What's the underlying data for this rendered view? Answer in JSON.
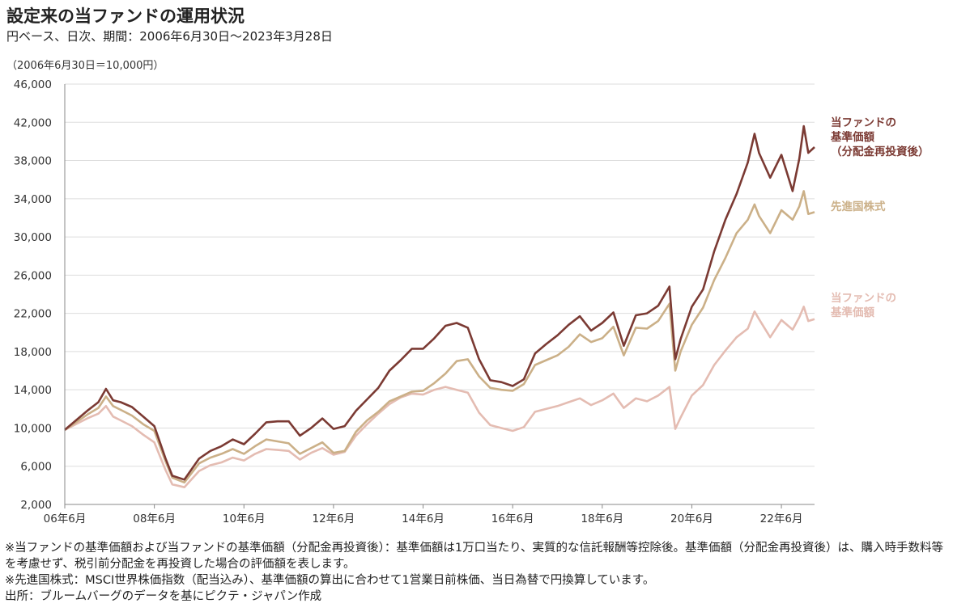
{
  "title": "設定来の当ファンドの運用状況",
  "subtitle": "円ベース、日次、期間：2006年6月30日～2023年3月28日",
  "unit_note": "（2006年6月30日＝10,000円）",
  "footnotes": [
    "※当ファンドの基準価額および当ファンドの基準価額（分配金再投資後）：基準価額は1万口当たり、実質的な信託報酬等控除後。基準価額（分配金再投資後）は、購入時手数料等を考慮せず、税引前分配金を再投資した場合の評価額を表します。",
    "※先進国株式：MSCI世界株価指数（配当込み）、基準価額の算出に合わせて1営業日前株価、当日為替で円換算しています。",
    "出所：ブルームバーグのデータを基にピクテ・ジャパン作成"
  ],
  "chart_data": {
    "type": "line",
    "ylim": [
      2000,
      46000
    ],
    "yticks": [
      "2,000",
      "6,000",
      "10,000",
      "14,000",
      "18,000",
      "22,000",
      "26,000",
      "30,000",
      "34,000",
      "38,000",
      "42,000",
      "46,000"
    ],
    "ytick_values": [
      2000,
      6000,
      10000,
      14000,
      18000,
      22000,
      26000,
      30000,
      34000,
      38000,
      42000,
      46000
    ],
    "xlim": [
      2006.5,
      2023.24
    ],
    "xticks": [
      "06年6月",
      "08年6月",
      "10年6月",
      "12年6月",
      "14年6月",
      "16年6月",
      "18年6月",
      "20年6月",
      "22年6月"
    ],
    "xtick_values": [
      2006.5,
      2008.5,
      2010.5,
      2012.5,
      2014.5,
      2016.5,
      2018.5,
      2020.5,
      2022.5
    ],
    "grid": true,
    "colors": {
      "reinvested": "#7b3a33",
      "msci": "#cbb088",
      "nav": "#e4bcb2",
      "grid": "#dddddd",
      "axis": "#888888"
    },
    "series": [
      {
        "name": "当ファンドの\n基準価額\n（分配金再投資後）",
        "color": "#7b3a33",
        "x": [
          2006.5,
          2006.75,
          2007.0,
          2007.25,
          2007.42,
          2007.58,
          2007.75,
          2008.0,
          2008.25,
          2008.5,
          2008.75,
          2008.9,
          2009.17,
          2009.5,
          2009.75,
          2010.0,
          2010.25,
          2010.5,
          2010.75,
          2011.0,
          2011.25,
          2011.5,
          2011.75,
          2012.0,
          2012.25,
          2012.5,
          2012.75,
          2013.0,
          2013.25,
          2013.5,
          2013.75,
          2014.0,
          2014.25,
          2014.5,
          2014.75,
          2015.0,
          2015.25,
          2015.5,
          2015.75,
          2016.0,
          2016.25,
          2016.5,
          2016.75,
          2017.0,
          2017.25,
          2017.5,
          2017.75,
          2018.0,
          2018.25,
          2018.5,
          2018.75,
          2018.98,
          2019.25,
          2019.5,
          2019.75,
          2020.0,
          2020.13,
          2020.25,
          2020.5,
          2020.75,
          2021.0,
          2021.25,
          2021.5,
          2021.75,
          2021.9,
          2022.0,
          2022.25,
          2022.5,
          2022.75,
          2022.9,
          2023.0,
          2023.1,
          2023.24
        ],
        "y": [
          9800,
          10800,
          11800,
          12700,
          14100,
          12900,
          12700,
          12200,
          11200,
          10200,
          6800,
          5000,
          4600,
          6800,
          7600,
          8100,
          8800,
          8300,
          9400,
          10600,
          10700,
          10700,
          9200,
          10000,
          11000,
          9900,
          10200,
          11800,
          13000,
          14200,
          16000,
          17100,
          18300,
          18300,
          19400,
          20700,
          21000,
          20500,
          17200,
          15000,
          14800,
          14400,
          15100,
          17800,
          18800,
          19700,
          20800,
          21700,
          20200,
          21000,
          22100,
          18600,
          21800,
          22000,
          22800,
          24800,
          17200,
          19300,
          22700,
          24500,
          28500,
          31800,
          34500,
          37800,
          40800,
          38800,
          36200,
          38600,
          34800,
          38200,
          41600,
          38800,
          39400
        ]
      },
      {
        "name": "先進国株式",
        "color": "#cbb088",
        "x": [
          2006.5,
          2006.75,
          2007.0,
          2007.25,
          2007.42,
          2007.58,
          2007.75,
          2008.0,
          2008.25,
          2008.5,
          2008.75,
          2008.9,
          2009.17,
          2009.5,
          2009.75,
          2010.0,
          2010.25,
          2010.5,
          2010.75,
          2011.0,
          2011.25,
          2011.5,
          2011.75,
          2012.0,
          2012.25,
          2012.5,
          2012.75,
          2013.0,
          2013.25,
          2013.5,
          2013.75,
          2014.0,
          2014.25,
          2014.5,
          2014.75,
          2015.0,
          2015.25,
          2015.5,
          2015.75,
          2016.0,
          2016.25,
          2016.5,
          2016.75,
          2017.0,
          2017.25,
          2017.5,
          2017.75,
          2018.0,
          2018.25,
          2018.5,
          2018.75,
          2018.98,
          2019.25,
          2019.5,
          2019.75,
          2020.0,
          2020.13,
          2020.25,
          2020.5,
          2020.75,
          2021.0,
          2021.25,
          2021.5,
          2021.75,
          2021.9,
          2022.0,
          2022.25,
          2022.5,
          2022.75,
          2022.9,
          2023.0,
          2023.1,
          2023.24
        ],
        "y": [
          9800,
          10600,
          11400,
          12100,
          13300,
          12300,
          11900,
          11300,
          10400,
          9700,
          6500,
          4800,
          4300,
          6300,
          6900,
          7300,
          7800,
          7300,
          8100,
          8800,
          8600,
          8400,
          7300,
          7900,
          8500,
          7400,
          7600,
          9600,
          10800,
          11700,
          12800,
          13300,
          13800,
          13900,
          14700,
          15700,
          17000,
          17200,
          15400,
          14200,
          14000,
          13900,
          14600,
          16600,
          17100,
          17600,
          18500,
          19800,
          19000,
          19400,
          20600,
          17600,
          20500,
          20400,
          21200,
          23000,
          16000,
          18000,
          20800,
          22600,
          25500,
          27800,
          30400,
          31800,
          33400,
          32200,
          30400,
          32800,
          31800,
          33200,
          34800,
          32400,
          32600
        ]
      },
      {
        "name": "当ファンドの\n基準価額",
        "color": "#e4bcb2",
        "x": [
          2006.5,
          2006.75,
          2007.0,
          2007.25,
          2007.42,
          2007.58,
          2007.75,
          2008.0,
          2008.25,
          2008.5,
          2008.75,
          2008.9,
          2009.17,
          2009.5,
          2009.75,
          2010.0,
          2010.25,
          2010.5,
          2010.75,
          2011.0,
          2011.25,
          2011.5,
          2011.75,
          2012.0,
          2012.25,
          2012.5,
          2012.75,
          2013.0,
          2013.25,
          2013.5,
          2013.75,
          2014.0,
          2014.25,
          2014.5,
          2014.75,
          2015.0,
          2015.25,
          2015.5,
          2015.75,
          2016.0,
          2016.25,
          2016.5,
          2016.75,
          2017.0,
          2017.25,
          2017.5,
          2017.75,
          2018.0,
          2018.25,
          2018.5,
          2018.75,
          2018.98,
          2019.25,
          2019.5,
          2019.75,
          2020.0,
          2020.13,
          2020.25,
          2020.5,
          2020.75,
          2021.0,
          2021.25,
          2021.5,
          2021.75,
          2021.9,
          2022.0,
          2022.25,
          2022.5,
          2022.75,
          2022.9,
          2023.0,
          2023.1,
          2023.24
        ],
        "y": [
          9800,
          10400,
          11000,
          11500,
          12300,
          11200,
          10800,
          10200,
          9300,
          8500,
          5600,
          4100,
          3800,
          5500,
          6100,
          6400,
          6900,
          6600,
          7300,
          7800,
          7700,
          7600,
          6700,
          7400,
          7900,
          7200,
          7500,
          9200,
          10400,
          11500,
          12500,
          13200,
          13600,
          13500,
          14000,
          14300,
          14000,
          13700,
          11600,
          10300,
          10000,
          9700,
          10100,
          11700,
          12000,
          12300,
          12700,
          13100,
          12400,
          12900,
          13600,
          12100,
          13100,
          12800,
          13400,
          14300,
          9900,
          11100,
          13400,
          14500,
          16600,
          18100,
          19500,
          20400,
          22200,
          21400,
          19500,
          21300,
          20300,
          21600,
          22700,
          21200,
          21400
        ]
      }
    ],
    "legend_placement": "right-of-lines"
  }
}
